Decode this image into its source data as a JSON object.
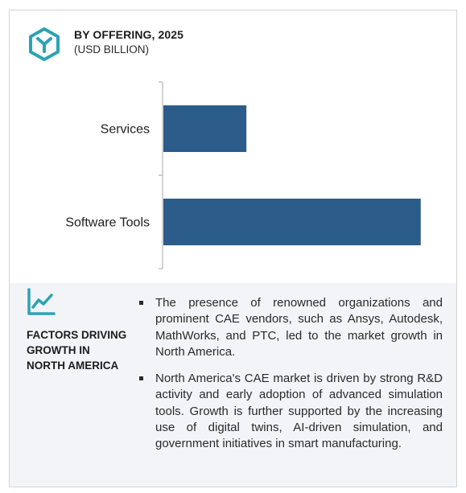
{
  "header": {
    "title": "BY OFFERING, 2025",
    "subtitle": "(USD BILLION)"
  },
  "colors": {
    "bar": "#2b5c8a",
    "accent": "#2aa3b5",
    "axis": "#b8b8b8",
    "panel": "#f3f4f7"
  },
  "icons": {
    "logo": "hexagon-y-logo-icon",
    "factors": "line-chart-icon"
  },
  "chart_data": {
    "type": "bar",
    "orientation": "horizontal",
    "categories": [
      "Services",
      "Software Tools"
    ],
    "values": [
      1.0,
      3.1
    ],
    "xlim": [
      0,
      3.5
    ],
    "grid": false,
    "title": "",
    "xlabel": "",
    "ylabel": ""
  },
  "factors": {
    "title": "FACTORS DRIVING GROWTH IN NORTH AMERICA",
    "bullets": [
      "The presence of renowned organizations and prominent CAE vendors, such as Ansys, Autodesk, MathWorks, and PTC, led to the market growth in North America.",
      "North America's CAE market is driven by strong R&D activity and early adoption of advanced simulation tools. Growth is further supported by the increasing use of digital twins, AI-driven simulation, and government initiatives in smart manufacturing."
    ]
  }
}
